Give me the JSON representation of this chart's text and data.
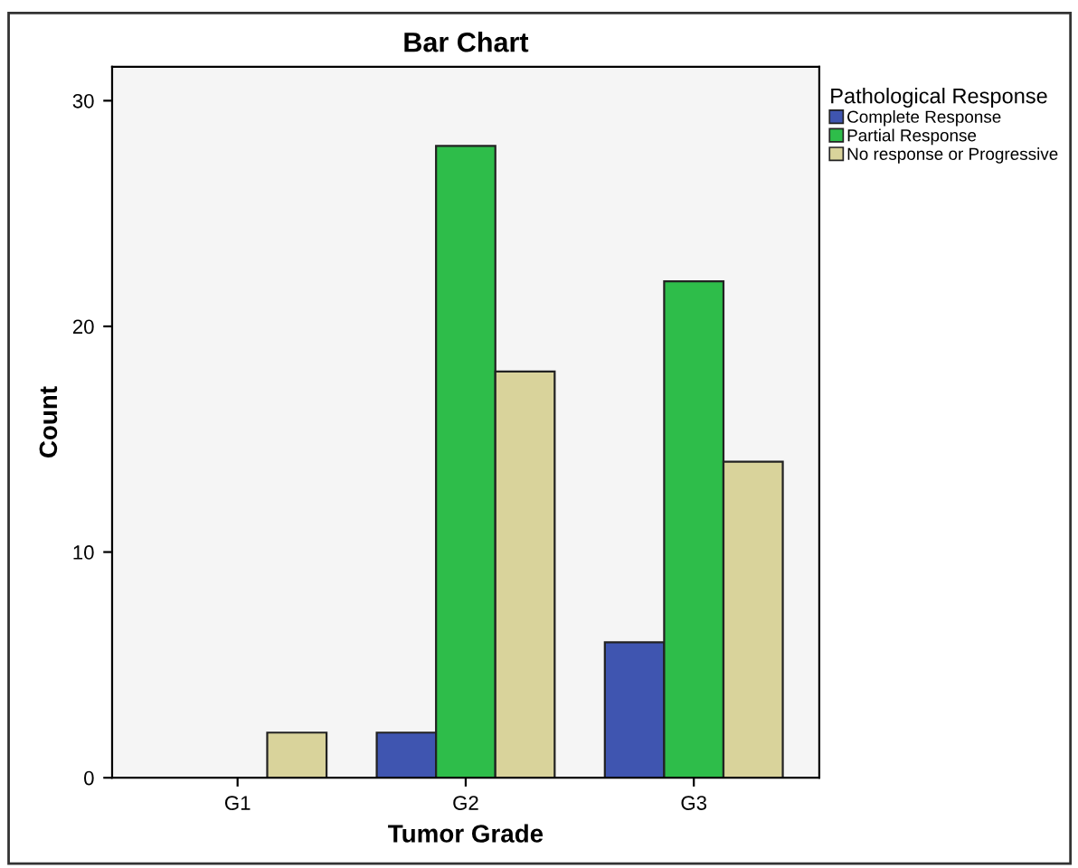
{
  "chart_data": {
    "type": "bar",
    "title": "Bar Chart",
    "xlabel": "Tumor Grade",
    "ylabel": "Count",
    "legend_title": "Pathological Response",
    "categories": [
      "G1",
      "G2",
      "G3"
    ],
    "series": [
      {
        "name": "Complete Response",
        "color": "#3f55b0",
        "values": [
          0,
          2,
          6
        ]
      },
      {
        "name": "Partial Response",
        "color": "#2ebd4a",
        "values": [
          0,
          28,
          22
        ]
      },
      {
        "name": "No response or Progressive",
        "color": "#d9d39b",
        "values": [
          2,
          18,
          14
        ]
      }
    ],
    "ylim": [
      0,
      31.5
    ],
    "yticks": [
      0,
      10,
      20,
      30
    ],
    "grid": false,
    "legend": "top right"
  }
}
